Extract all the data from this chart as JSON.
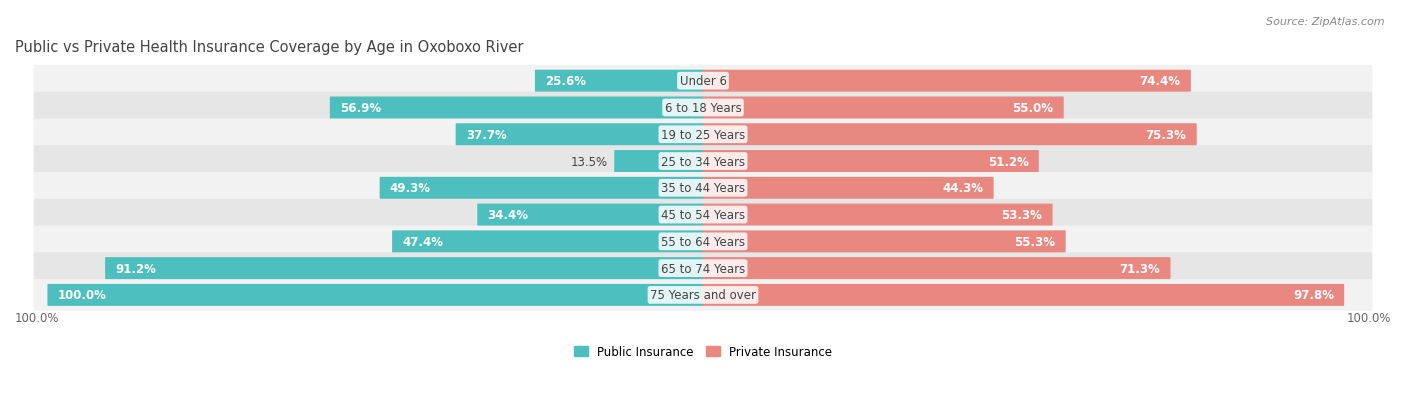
{
  "title": "Public vs Private Health Insurance Coverage by Age in Oxoboxo River",
  "source": "Source: ZipAtlas.com",
  "categories": [
    "Under 6",
    "6 to 18 Years",
    "19 to 25 Years",
    "25 to 34 Years",
    "35 to 44 Years",
    "45 to 54 Years",
    "55 to 64 Years",
    "65 to 74 Years",
    "75 Years and over"
  ],
  "public": [
    25.6,
    56.9,
    37.7,
    13.5,
    49.3,
    34.4,
    47.4,
    91.2,
    100.0
  ],
  "private": [
    74.4,
    55.0,
    75.3,
    51.2,
    44.3,
    53.3,
    55.3,
    71.3,
    97.8
  ],
  "public_color": "#4dbfbf",
  "private_color": "#e88880",
  "row_bg_light": "#f2f2f2",
  "row_bg_dark": "#e6e6e6",
  "text_dark": "#444444",
  "text_light": "#ffffff",
  "label_fontsize": 8.5,
  "title_fontsize": 10.5,
  "cat_fontsize": 8.5,
  "legend_fontsize": 8.5,
  "source_fontsize": 8,
  "max_val": 100.0,
  "bottom_label": "100.0%"
}
